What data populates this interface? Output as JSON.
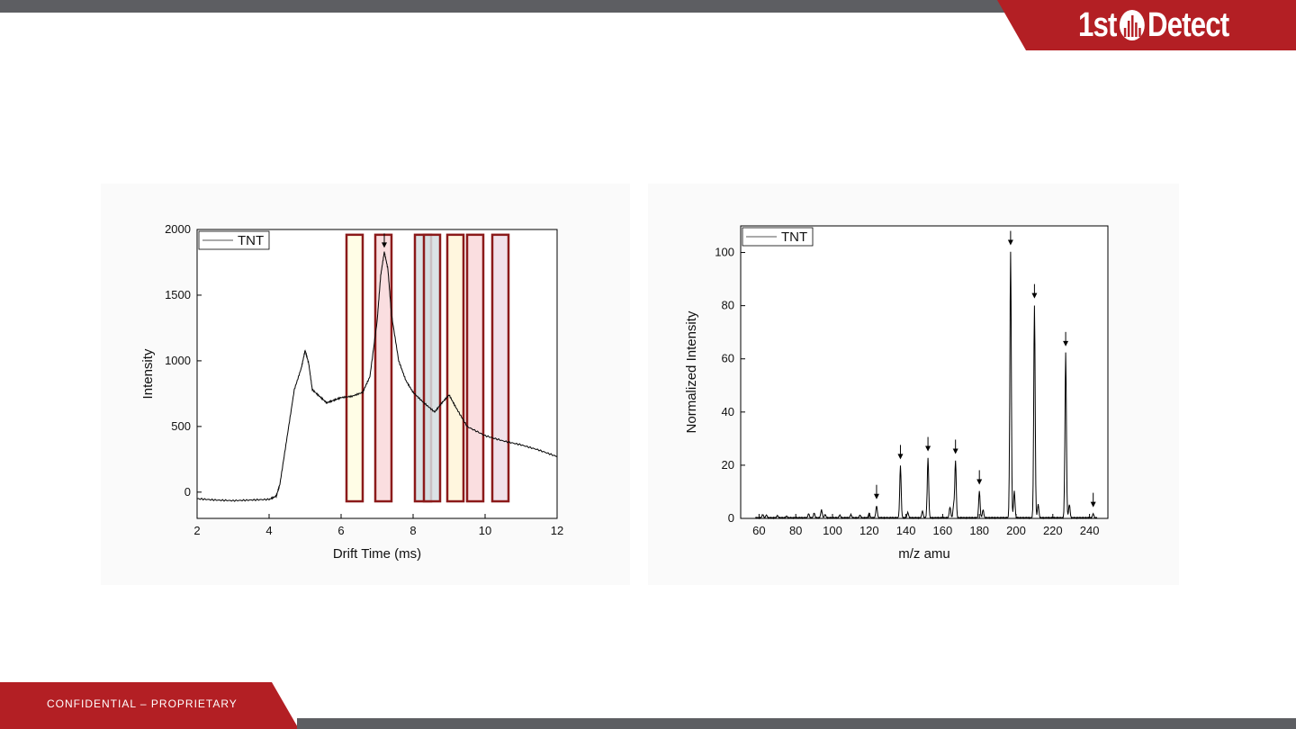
{
  "header": {
    "logo_text": "1st Detect",
    "logo_left": "1st",
    "logo_right": "Detect",
    "accent_color": "#b31f24",
    "bar_color": "#5d5e62"
  },
  "footer": {
    "label": "CONFIDENTIAL – PROPRIETARY"
  },
  "chart_data": [
    {
      "type": "line",
      "title": "",
      "xlabel": "Drift Time (ms)",
      "ylabel": "Intensity",
      "xlim": [
        2,
        12
      ],
      "ylim": [
        -200,
        2000
      ],
      "xticks": [
        2,
        4,
        6,
        8,
        10,
        12
      ],
      "yticks": [
        0,
        500,
        1000,
        1500,
        2000
      ],
      "legend": {
        "position": "top-left",
        "entries": [
          "TNT"
        ]
      },
      "series": [
        {
          "name": "TNT",
          "color": "#000000",
          "x": [
            2,
            2.5,
            3,
            3.5,
            4,
            4.2,
            4.3,
            4.5,
            4.7,
            4.9,
            5.0,
            5.1,
            5.2,
            5.4,
            5.6,
            5.8,
            6.0,
            6.3,
            6.6,
            6.8,
            7.0,
            7.1,
            7.2,
            7.3,
            7.4,
            7.6,
            7.8,
            8.0,
            8.3,
            8.6,
            8.8,
            9.0,
            9.2,
            9.5,
            10.0,
            10.5,
            11.0,
            11.5,
            12.0
          ],
          "y": [
            -50,
            -60,
            -65,
            -60,
            -55,
            -30,
            60,
            420,
            780,
            950,
            1080,
            980,
            780,
            730,
            680,
            700,
            720,
            730,
            760,
            880,
            1300,
            1650,
            1830,
            1700,
            1350,
            1000,
            850,
            760,
            680,
            610,
            680,
            740,
            640,
            500,
            430,
            390,
            360,
            320,
            270
          ]
        }
      ],
      "highlight_boxes": [
        {
          "x_range": [
            6.15,
            6.6
          ],
          "fill": "#fffde2"
        },
        {
          "x_range": [
            6.95,
            7.4
          ],
          "fill": "#f9d8da"
        },
        {
          "x_range": [
            8.05,
            8.5
          ],
          "fill": "#d5dde0"
        },
        {
          "x_range": [
            8.3,
            8.75
          ],
          "fill": "#d5dde0"
        },
        {
          "x_range": [
            8.95,
            9.4
          ],
          "fill": "#fff5d8"
        },
        {
          "x_range": [
            9.5,
            9.95
          ],
          "fill": "#f9d8da"
        },
        {
          "x_range": [
            10.2,
            10.65
          ],
          "fill": "#eedde6"
        }
      ],
      "box_y_range": [
        -70,
        1960
      ],
      "arrows_x": [
        7.2
      ]
    },
    {
      "type": "line",
      "title": "",
      "xlabel": "m/z amu",
      "ylabel": "Normalized Intensity",
      "xlim": [
        50,
        250
      ],
      "ylim": [
        0,
        110
      ],
      "xticks": [
        60,
        80,
        100,
        120,
        140,
        160,
        180,
        200,
        220,
        240
      ],
      "yticks": [
        0,
        20,
        40,
        60,
        80,
        100
      ],
      "legend": {
        "position": "top-left",
        "entries": [
          "TNT"
        ]
      },
      "series": [
        {
          "name": "TNT",
          "color": "#000000",
          "peaks": [
            {
              "mz": 62,
              "h": 1.2
            },
            {
              "mz": 64,
              "h": 1.0
            },
            {
              "mz": 70,
              "h": 0.8
            },
            {
              "mz": 75,
              "h": 0.6
            },
            {
              "mz": 87,
              "h": 1.5
            },
            {
              "mz": 90,
              "h": 1.8
            },
            {
              "mz": 94,
              "h": 3.0
            },
            {
              "mz": 96,
              "h": 1.2
            },
            {
              "mz": 104,
              "h": 1.0
            },
            {
              "mz": 110,
              "h": 1.2
            },
            {
              "mz": 115,
              "h": 1.0
            },
            {
              "mz": 120,
              "h": 1.8
            },
            {
              "mz": 124,
              "h": 4.5
            },
            {
              "mz": 137,
              "h": 19.5
            },
            {
              "mz": 141,
              "h": 2.0
            },
            {
              "mz": 149,
              "h": 2.5
            },
            {
              "mz": 152,
              "h": 22.5
            },
            {
              "mz": 164,
              "h": 4.0
            },
            {
              "mz": 166,
              "h": 4.5
            },
            {
              "mz": 167,
              "h": 21.5
            },
            {
              "mz": 180,
              "h": 10.0
            },
            {
              "mz": 182,
              "h": 3.0
            },
            {
              "mz": 197,
              "h": 100
            },
            {
              "mz": 199,
              "h": 10.0
            },
            {
              "mz": 210,
              "h": 80
            },
            {
              "mz": 212,
              "h": 5.0
            },
            {
              "mz": 227,
              "h": 62
            },
            {
              "mz": 229,
              "h": 5.0
            },
            {
              "mz": 242,
              "h": 1.5
            }
          ]
        }
      ],
      "arrows_x": [
        124,
        137,
        152,
        167,
        180,
        197,
        210,
        227,
        242
      ]
    }
  ]
}
